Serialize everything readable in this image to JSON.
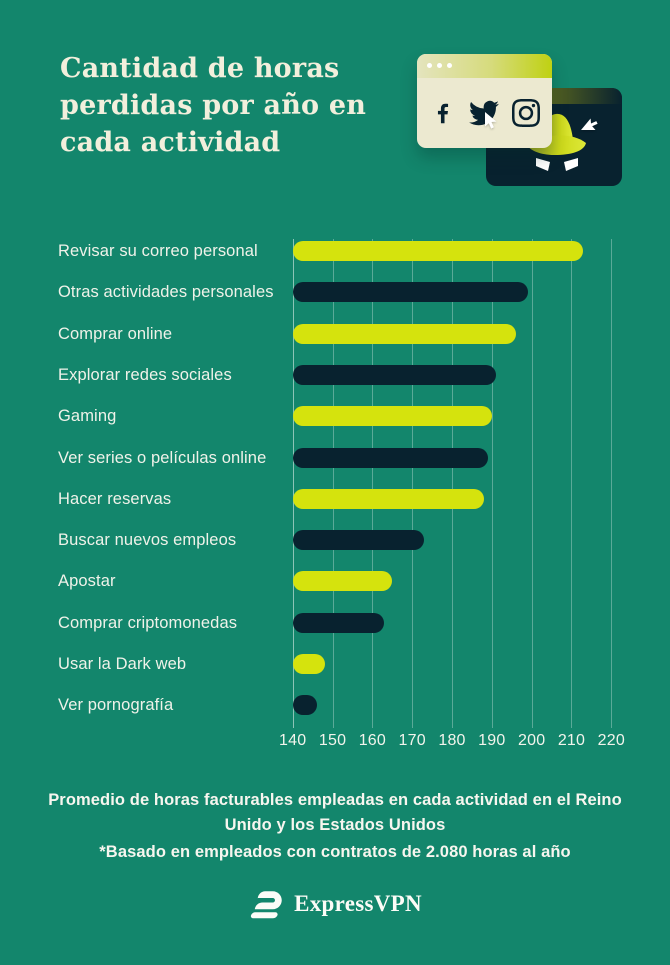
{
  "header": {
    "title": "Cantidad de horas\nperdidas por año en\ncada actividad"
  },
  "illustration": {
    "browser_icons": [
      "facebook-icon",
      "twitter-icon",
      "instagram-icon"
    ],
    "spy": "incognito-spy-with-hat",
    "cursors": 2
  },
  "chart_data": {
    "type": "bar",
    "orientation": "horizontal",
    "title": "Cantidad de horas perdidas por año en cada actividad",
    "xlabel": "",
    "ylabel": "",
    "xlim": [
      140,
      220
    ],
    "ticks": [
      140,
      150,
      160,
      170,
      180,
      190,
      200,
      210,
      220
    ],
    "grid": true,
    "rows": [
      {
        "label": "Revisar su correo personal",
        "value": 213,
        "color": "lime"
      },
      {
        "label": "Otras actividades personales",
        "value": 199,
        "color": "navy"
      },
      {
        "label": "Comprar online",
        "value": 196,
        "color": "lime"
      },
      {
        "label": "Explorar redes sociales",
        "value": 191,
        "color": "navy"
      },
      {
        "label": "Gaming",
        "value": 190,
        "color": "lime"
      },
      {
        "label": "Ver series o películas online",
        "value": 189,
        "color": "navy"
      },
      {
        "label": "Hacer reservas",
        "value": 188,
        "color": "lime"
      },
      {
        "label": "Buscar nuevos empleos",
        "value": 173,
        "color": "navy"
      },
      {
        "label": "Apostar",
        "value": 165,
        "color": "lime"
      },
      {
        "label": "Comprar criptomonedas",
        "value": 163,
        "color": "navy"
      },
      {
        "label": "Usar la Dark web",
        "value": 148,
        "color": "lime"
      },
      {
        "label": "Ver pornografía",
        "value": 146,
        "color": "navy"
      }
    ]
  },
  "footer": {
    "caption": "Promedio de horas facturables empleadas en cada actividad en el Reino\nUnido y los Estados Unidos",
    "footnote": "*Basado en empleados con contratos de 2.080 horas al año",
    "brand": "ExpressVPN"
  },
  "colors": {
    "background": "#13866C",
    "lime": "#D5E30D",
    "navy": "#08222F",
    "cream": "#F2EFDC",
    "window_body": "#ECE9D0"
  }
}
